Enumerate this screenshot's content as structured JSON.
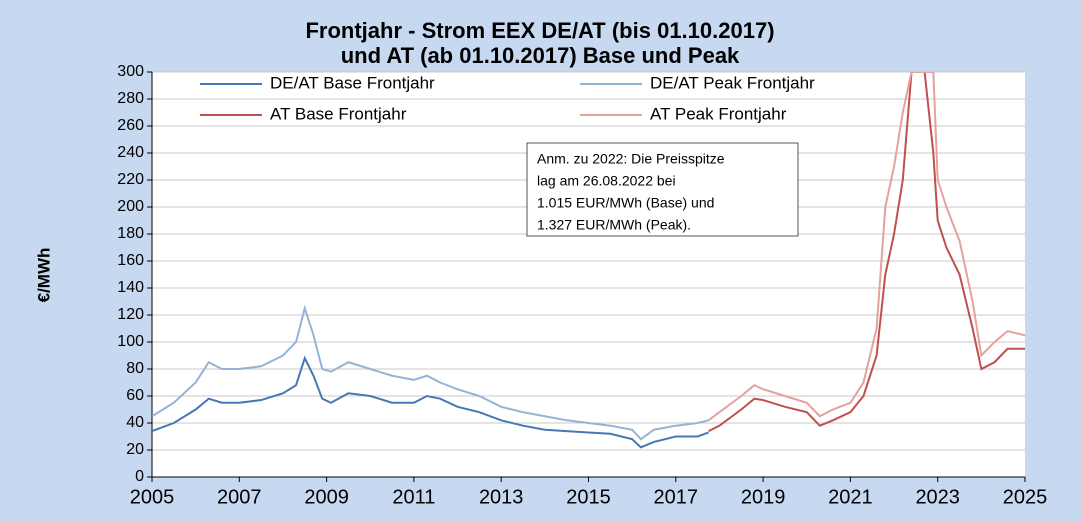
{
  "chart_data": {
    "type": "line",
    "title": [
      "Frontjahr - Strom EEX DE/AT (bis 01.10.2017)",
      "und AT (ab 01.10.2017) Base und Peak"
    ],
    "y_label": "€/MWh",
    "annotation": [
      "Anm. zu 2022: Die Preisspitze",
      "lag am 26.08.2022 bei",
      "1.015 EUR/MWh (Base) und",
      "1.327 EUR/MWh (Peak)."
    ],
    "xlim": [
      2005,
      2025
    ],
    "xticks": [
      2005,
      2007,
      2009,
      2011,
      2013,
      2015,
      2017,
      2019,
      2021,
      2023,
      2025
    ],
    "ylim": [
      0,
      300
    ],
    "yticks": [
      0,
      20,
      40,
      60,
      80,
      100,
      120,
      140,
      160,
      180,
      200,
      220,
      240,
      260,
      280,
      300
    ],
    "grid": true,
    "series": [
      {
        "name": "DE/AT Base Frontjahr",
        "color": "#4a76b5",
        "x": [
          2005,
          2005.5,
          2006,
          2006.3,
          2006.6,
          2007,
          2007.5,
          2008,
          2008.3,
          2008.5,
          2008.7,
          2008.9,
          2009.1,
          2009.5,
          2010,
          2010.5,
          2011,
          2011.3,
          2011.6,
          2012,
          2012.5,
          2013,
          2013.5,
          2014,
          2014.5,
          2015,
          2015.5,
          2016,
          2016.2,
          2016.5,
          2017,
          2017.5,
          2017.75
        ],
        "values": [
          34,
          40,
          50,
          58,
          55,
          55,
          57,
          62,
          68,
          88,
          75,
          58,
          55,
          62,
          60,
          55,
          55,
          60,
          58,
          52,
          48,
          42,
          38,
          35,
          34,
          33,
          32,
          28,
          22,
          26,
          30,
          30,
          33
        ]
      },
      {
        "name": "DE/AT Peak Frontjahr",
        "color": "#95b3d7",
        "x": [
          2005,
          2005.5,
          2006,
          2006.3,
          2006.6,
          2007,
          2007.5,
          2008,
          2008.3,
          2008.5,
          2008.7,
          2008.9,
          2009.1,
          2009.5,
          2010,
          2010.5,
          2011,
          2011.3,
          2011.6,
          2012,
          2012.5,
          2013,
          2013.5,
          2014,
          2014.5,
          2015,
          2015.5,
          2016,
          2016.2,
          2016.5,
          2017,
          2017.5,
          2017.75
        ],
        "values": [
          45,
          55,
          70,
          85,
          80,
          80,
          82,
          90,
          100,
          125,
          105,
          80,
          78,
          85,
          80,
          75,
          72,
          75,
          70,
          65,
          60,
          52,
          48,
          45,
          42,
          40,
          38,
          35,
          28,
          35,
          38,
          40,
          42
        ]
      },
      {
        "name": "AT Base Frontjahr",
        "color": "#c0504d",
        "x": [
          2017.75,
          2018,
          2018.5,
          2018.8,
          2019,
          2019.5,
          2020,
          2020.3,
          2020.6,
          2021,
          2021.3,
          2021.6,
          2021.8,
          2022,
          2022.2,
          2022.4,
          2022.7,
          2022.9,
          2023,
          2023.2,
          2023.5,
          2023.8,
          2024,
          2024.3,
          2024.6,
          2025
        ],
        "values": [
          34,
          38,
          50,
          58,
          57,
          52,
          48,
          38,
          42,
          48,
          60,
          90,
          150,
          180,
          220,
          300,
          300,
          240,
          190,
          170,
          150,
          110,
          80,
          85,
          95,
          95
        ]
      },
      {
        "name": "AT Peak Frontjahr",
        "color": "#e6a0a0",
        "x": [
          2017.75,
          2018,
          2018.5,
          2018.8,
          2019,
          2019.5,
          2020,
          2020.3,
          2020.6,
          2021,
          2021.3,
          2021.6,
          2021.8,
          2022,
          2022.2,
          2022.4,
          2022.7,
          2022.9,
          2023,
          2023.2,
          2023.5,
          2023.8,
          2024,
          2024.3,
          2024.6,
          2025
        ],
        "values": [
          42,
          48,
          60,
          68,
          65,
          60,
          55,
          45,
          50,
          55,
          70,
          110,
          200,
          230,
          270,
          300,
          300,
          300,
          220,
          200,
          175,
          130,
          90,
          100,
          108,
          105
        ]
      }
    ]
  }
}
